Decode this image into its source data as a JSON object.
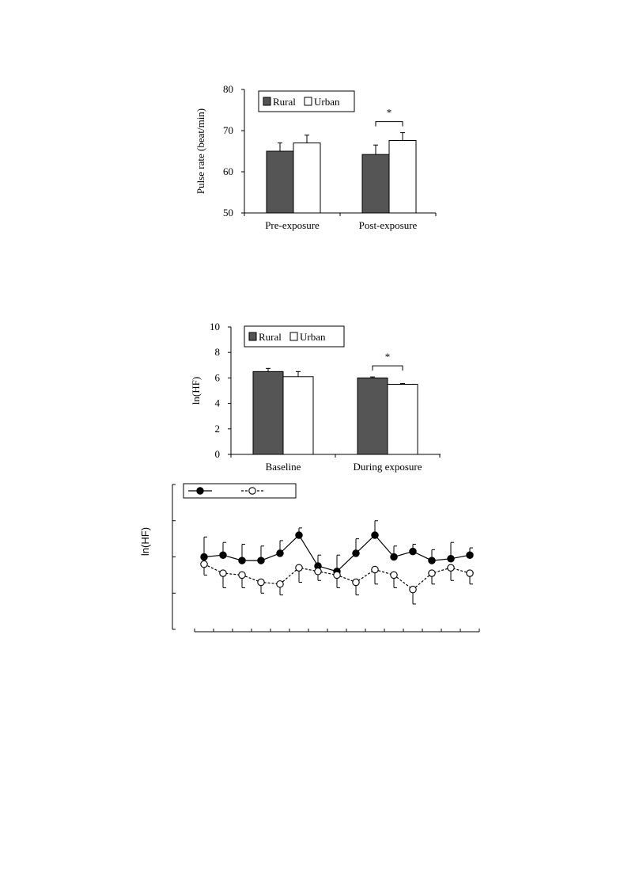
{
  "chart_data": [
    {
      "type": "bar",
      "categories": [
        "Pre-exposure",
        "Post-exposure"
      ],
      "series": [
        {
          "name": "Rural",
          "values": [
            65.0,
            64.2
          ],
          "errors": [
            2.0,
            2.3
          ],
          "color": "#555555"
        },
        {
          "name": "Urban",
          "values": [
            67.0,
            67.6
          ],
          "errors": [
            1.9,
            1.9
          ],
          "color": "#ffffff"
        }
      ],
      "ylabel": "Pulse rate (beat/min)",
      "ylim": [
        50,
        80
      ],
      "yticks": [
        "50",
        "60",
        "70",
        "80"
      ],
      "significance": [
        {
          "category_index": 1,
          "label": "*"
        }
      ],
      "legend": "top-left"
    },
    {
      "type": "bar",
      "categories": [
        "Baseline",
        "During exposure"
      ],
      "series": [
        {
          "name": "Rural",
          "values": [
            6.5,
            6.0
          ],
          "errors": [
            0.25,
            0.08
          ],
          "color": "#555555"
        },
        {
          "name": "Urban",
          "values": [
            6.1,
            5.5
          ],
          "errors": [
            0.4,
            0.06
          ],
          "color": "#ffffff"
        }
      ],
      "ylabel": "ln(HF)",
      "ylim": [
        0,
        10
      ],
      "yticks": [
        "0",
        "2",
        "4",
        "6",
        "8",
        "10"
      ],
      "significance": [
        {
          "category_index": 1,
          "label": "*"
        }
      ],
      "legend": "top-left"
    },
    {
      "type": "line",
      "ylabel": "ln(HF)",
      "x": [
        1,
        2,
        3,
        4,
        5,
        6,
        7,
        8,
        9,
        10,
        11,
        12,
        13,
        14,
        15
      ],
      "ylim": [
        4,
        8
      ],
      "series": [
        {
          "name": "",
          "marker": "filled-circle",
          "style": "solid",
          "values": [
            6.0,
            6.05,
            5.9,
            5.9,
            6.1,
            6.6,
            5.75,
            5.6,
            6.1,
            6.6,
            6.0,
            6.15,
            5.9,
            5.95,
            6.05
          ],
          "errors": [
            0.55,
            0.35,
            0.45,
            0.4,
            0.35,
            0.2,
            0.3,
            0.45,
            0.4,
            0.4,
            0.3,
            0.2,
            0.3,
            0.45,
            0.2
          ]
        },
        {
          "name": "",
          "marker": "open-circle",
          "style": "dashed",
          "values": [
            5.8,
            5.55,
            5.5,
            5.3,
            5.25,
            5.7,
            5.6,
            5.5,
            5.3,
            5.65,
            5.5,
            5.1,
            5.55,
            5.7,
            5.55
          ],
          "errors": [
            0.3,
            0.4,
            0.35,
            0.3,
            0.3,
            0.4,
            0.25,
            0.35,
            0.35,
            0.4,
            0.35,
            0.4,
            0.3,
            0.35,
            0.3
          ]
        }
      ],
      "legend": "top-left"
    }
  ]
}
